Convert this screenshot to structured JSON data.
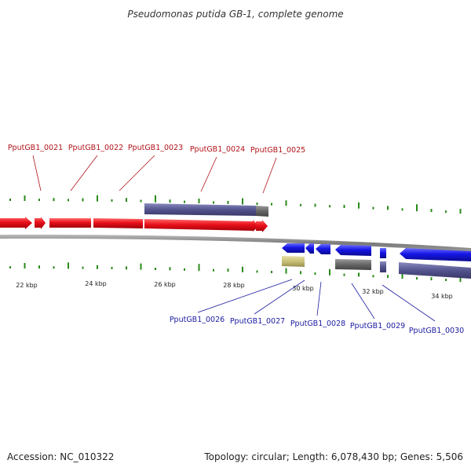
{
  "title": "Pseudomonas putida GB-1, complete genome",
  "accession": "Accession: NC_010322",
  "topology": "Topology: circular; Length: 6,078,430 bp; Genes: 5,506",
  "colors": {
    "forward_cds": "#e8101a",
    "reverse_cds": "#1616e6",
    "feature_purple": "#5a5a96",
    "feature_gray": "#6e6e6e",
    "feature_khaki": "#c8c078",
    "gc_tick": "#2a8a1a",
    "label_forward": "#b0141a",
    "label_reverse": "#1a1aa0"
  },
  "ticks": [
    "22 kbp",
    "24 kbp",
    "26 kbp",
    "28 kbp",
    "30 kbp",
    "32 kbp",
    "34 kbp"
  ],
  "forward_labels": [
    "PputGB1_0021",
    "PputGB1_0022",
    "PputGB1_0023",
    "PputGB1_0024",
    "PputGB1_0025"
  ],
  "reverse_labels": [
    "PputGB1_0026",
    "PputGB1_0027",
    "PputGB1_0028",
    "PputGB1_0029",
    "PputGB1_0030"
  ]
}
